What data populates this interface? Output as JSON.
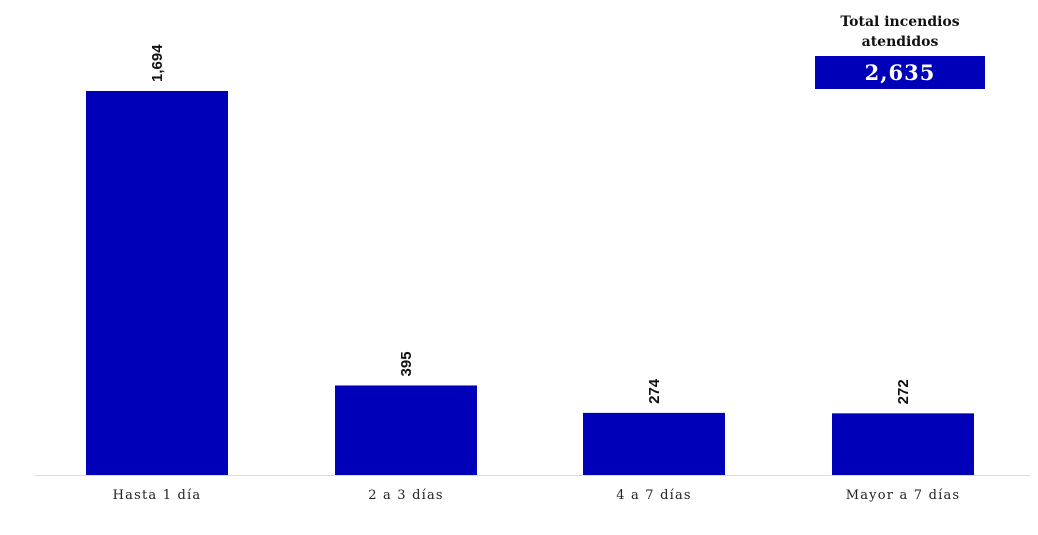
{
  "chart_data": {
    "type": "bar",
    "categories": [
      "Hasta 1 día",
      "2 a 3 días",
      "4 a 7 días",
      "Mayor a 7 días"
    ],
    "values": [
      1694,
      395,
      274,
      272
    ],
    "value_labels": [
      "1,694",
      "395",
      "274",
      "272"
    ],
    "ylim": [
      0,
      1694
    ],
    "grid": false,
    "bar_color": "#0000b8",
    "total": {
      "title_line1": "Total incendios",
      "title_line2": "atendidos",
      "value": "2,635"
    }
  }
}
